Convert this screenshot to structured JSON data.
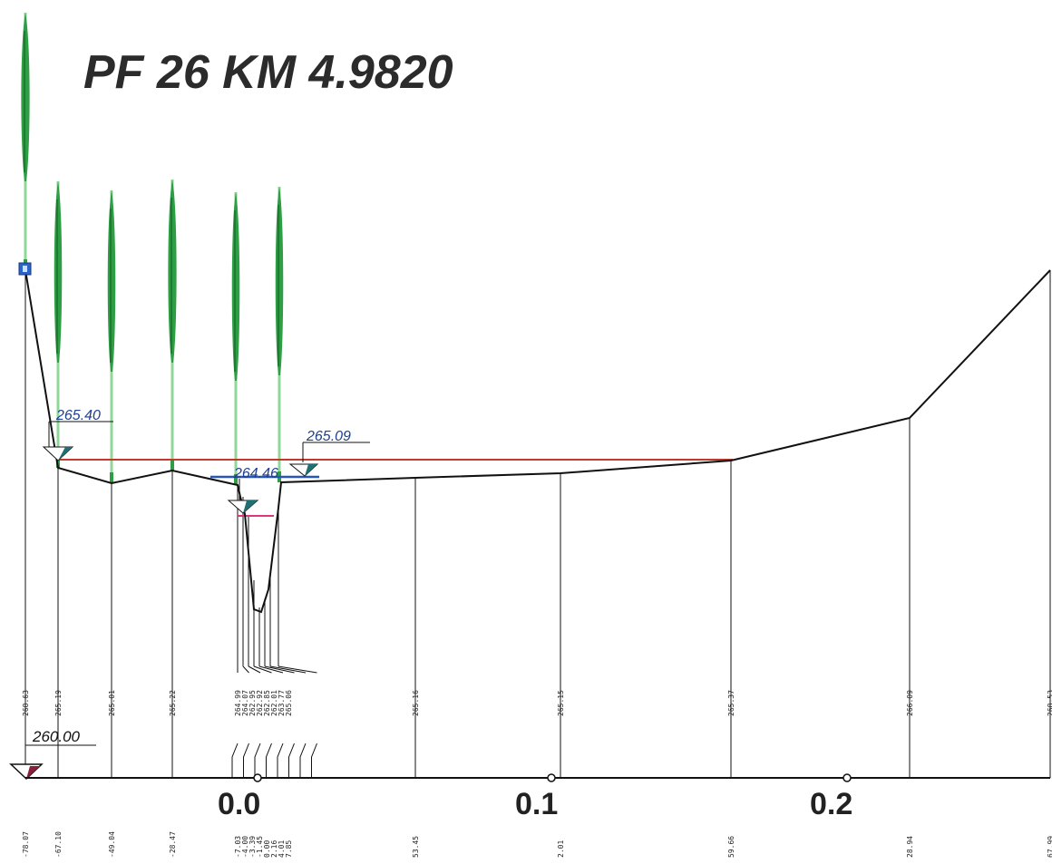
{
  "title": "PF 26  KM 4.9820",
  "datum_label": "260.00",
  "water_levels": [
    {
      "label": "265.40",
      "kind": "left"
    },
    {
      "label": "265.09",
      "kind": "right"
    },
    {
      "label": "264.46",
      "kind": "channel"
    }
  ],
  "axis_labels": [
    "0.0",
    "0.1",
    "0.2"
  ],
  "elevations": [
    "268.63",
    "265.19",
    "265.01",
    "265.22",
    "264.99",
    "264.07",
    "262.95",
    "262.92",
    "262.85",
    "262.01",
    "263.77",
    "265.06",
    "265.16",
    "265.15",
    "265.37",
    "266.09",
    "268.53"
  ],
  "offsets": [
    "-78.07",
    "-67.10",
    "-49.04",
    "-28.47",
    "-7.03",
    "-4.00",
    "-3.39",
    "-1.45",
    "0.00",
    "2.16",
    "4.01",
    "7.85",
    "53.45",
    "2.01",
    "59.66",
    "28.94",
    "67.99"
  ],
  "colors": {
    "ground_line": "#111111",
    "vegetation": "#2e9e44",
    "water_level_red": "#c0392b",
    "water_level_blue": "#2756b8",
    "water_level_pink": "#e0357a",
    "marker_teal": "#1f6f73",
    "datum_marker": "#8a1f3a",
    "station_box": "#2a63c9"
  }
}
